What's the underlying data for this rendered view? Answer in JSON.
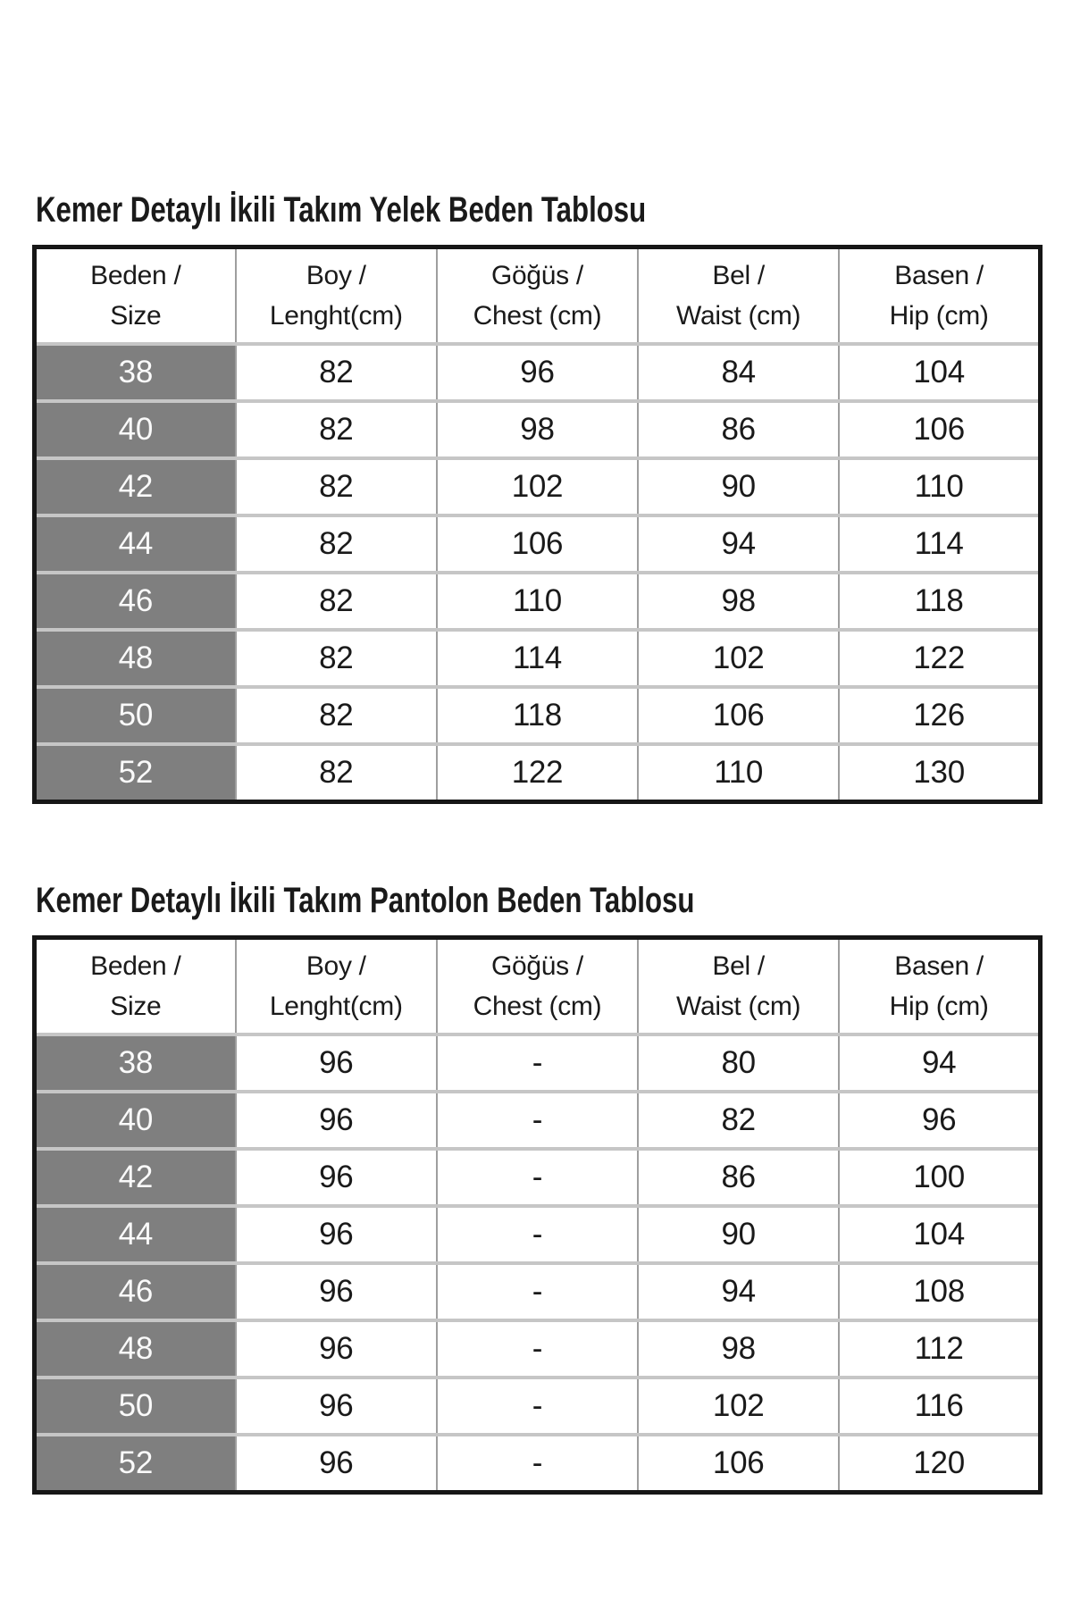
{
  "colors": {
    "background": "#ffffff",
    "text": "#1a1a1a",
    "table_border": "#161616",
    "row_divider": "#c6c6c6",
    "column_divider": "#9e9e9e",
    "size_column_bg": "#7f7f7f",
    "size_column_text": "#fafafa"
  },
  "tables": [
    {
      "title": "Kemer Detaylı İkili Takım Yelek Beden Tablosu",
      "columns": [
        {
          "line1": "Beden /",
          "line2": "Size"
        },
        {
          "line1": "Boy /",
          "line2": "Lenght(cm)"
        },
        {
          "line1": "Göğüs /",
          "line2": "Chest (cm)"
        },
        {
          "line1": "Bel /",
          "line2": "Waist (cm)"
        },
        {
          "line1": "Basen /",
          "line2": "Hip (cm)"
        }
      ],
      "rows": [
        {
          "size": "38",
          "values": [
            "82",
            "96",
            "84",
            "104"
          ]
        },
        {
          "size": "40",
          "values": [
            "82",
            "98",
            "86",
            "106"
          ]
        },
        {
          "size": "42",
          "values": [
            "82",
            "102",
            "90",
            "110"
          ]
        },
        {
          "size": "44",
          "values": [
            "82",
            "106",
            "94",
            "114"
          ]
        },
        {
          "size": "46",
          "values": [
            "82",
            "110",
            "98",
            "118"
          ]
        },
        {
          "size": "48",
          "values": [
            "82",
            "114",
            "102",
            "122"
          ]
        },
        {
          "size": "50",
          "values": [
            "82",
            "118",
            "106",
            "126"
          ]
        },
        {
          "size": "52",
          "values": [
            "82",
            "122",
            "110",
            "130"
          ]
        }
      ]
    },
    {
      "title": "Kemer Detaylı İkili Takım Pantolon Beden Tablosu",
      "columns": [
        {
          "line1": "Beden /",
          "line2": "Size"
        },
        {
          "line1": "Boy /",
          "line2": "Lenght(cm)"
        },
        {
          "line1": "Göğüs /",
          "line2": "Chest (cm)"
        },
        {
          "line1": "Bel /",
          "line2": "Waist (cm)"
        },
        {
          "line1": "Basen /",
          "line2": "Hip (cm)"
        }
      ],
      "rows": [
        {
          "size": "38",
          "values": [
            "96",
            "-",
            "80",
            "94"
          ]
        },
        {
          "size": "40",
          "values": [
            "96",
            "-",
            "82",
            "96"
          ]
        },
        {
          "size": "42",
          "values": [
            "96",
            "-",
            "86",
            "100"
          ]
        },
        {
          "size": "44",
          "values": [
            "96",
            "-",
            "90",
            "104"
          ]
        },
        {
          "size": "46",
          "values": [
            "96",
            "-",
            "94",
            "108"
          ]
        },
        {
          "size": "48",
          "values": [
            "96",
            "-",
            "98",
            "112"
          ]
        },
        {
          "size": "50",
          "values": [
            "96",
            "-",
            "102",
            "116"
          ]
        },
        {
          "size": "52",
          "values": [
            "96",
            "-",
            "106",
            "120"
          ]
        }
      ]
    }
  ]
}
